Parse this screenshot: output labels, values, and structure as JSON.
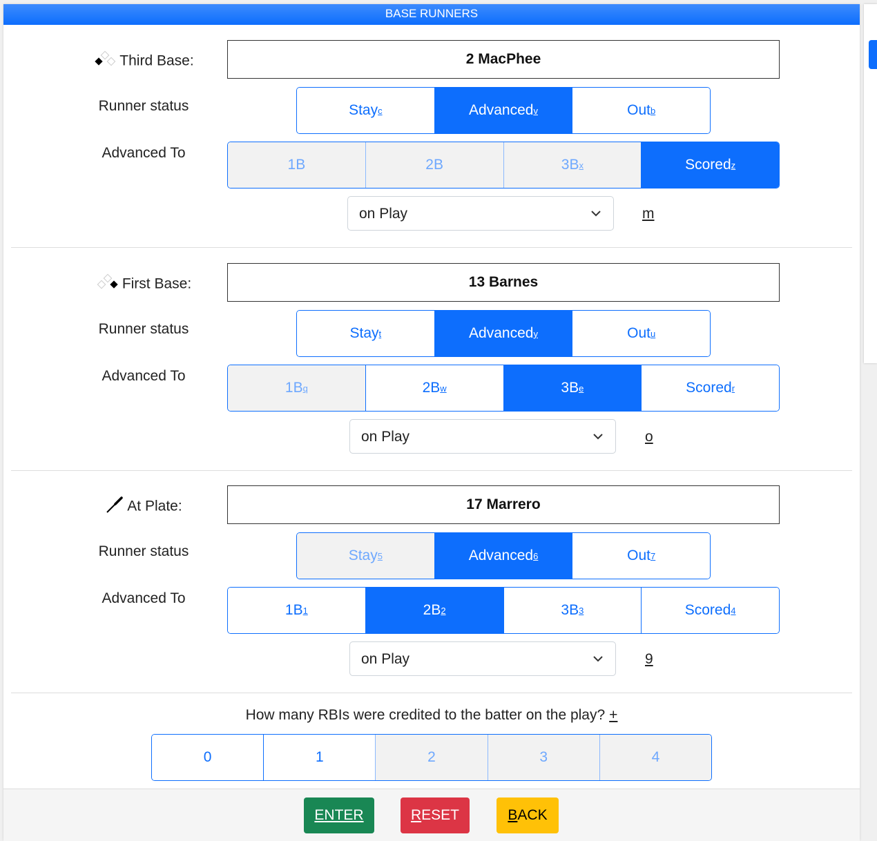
{
  "header": {
    "title": "BASE RUNNERS"
  },
  "runners": [
    {
      "label": "Third Base:",
      "icon": "third-base-diamond-icon",
      "name": "2 MacPhee",
      "status_label": "Runner status",
      "advanced_label": "Advanced To",
      "status": [
        {
          "text": "Stay",
          "key": "c",
          "state": "normal"
        },
        {
          "text": "Advanced",
          "key": "v",
          "state": "active"
        },
        {
          "text": "Out",
          "key": "b",
          "state": "normal"
        }
      ],
      "advanced": [
        {
          "text": "1B",
          "key": "",
          "state": "disabled"
        },
        {
          "text": "2B",
          "key": "",
          "state": "disabled"
        },
        {
          "text": "3B",
          "key": "x",
          "state": "disabled"
        },
        {
          "text": "Scored",
          "key": "z",
          "state": "active"
        }
      ],
      "select": "on Play",
      "hotkey": "m"
    },
    {
      "label": "First Base:",
      "icon": "first-base-diamond-icon",
      "name": "13 Barnes",
      "status_label": "Runner status",
      "advanced_label": "Advanced To",
      "status": [
        {
          "text": "Stay",
          "key": "t",
          "state": "normal"
        },
        {
          "text": "Advanced",
          "key": "y",
          "state": "active"
        },
        {
          "text": "Out",
          "key": "u",
          "state": "normal"
        }
      ],
      "advanced": [
        {
          "text": "1B",
          "key": "q",
          "state": "disabled"
        },
        {
          "text": "2B",
          "key": "w",
          "state": "normal"
        },
        {
          "text": "3B",
          "key": "e",
          "state": "active"
        },
        {
          "text": "Scored",
          "key": "r",
          "state": "normal"
        }
      ],
      "select": "on Play",
      "hotkey": "o"
    },
    {
      "label": "At Plate:",
      "icon": "bat-icon",
      "name": "17 Marrero",
      "status_label": "Runner status",
      "advanced_label": "Advanced To",
      "status": [
        {
          "text": "Stay",
          "key": "5",
          "state": "disabled"
        },
        {
          "text": "Advanced",
          "key": "6",
          "state": "active"
        },
        {
          "text": "Out",
          "key": "7",
          "state": "normal"
        }
      ],
      "advanced": [
        {
          "text": "1B",
          "key": "1",
          "state": "normal"
        },
        {
          "text": "2B",
          "key": "2",
          "state": "active"
        },
        {
          "text": "3B",
          "key": "3",
          "state": "normal"
        },
        {
          "text": "Scored",
          "key": "4",
          "state": "normal"
        }
      ],
      "select": "on Play",
      "hotkey": "9"
    }
  ],
  "rbi": {
    "question": "How many RBIs were credited to the batter on the play?",
    "hotkey": "+",
    "options": [
      {
        "text": "0",
        "state": "normal"
      },
      {
        "text": "1",
        "state": "normal"
      },
      {
        "text": "2",
        "state": "disabled"
      },
      {
        "text": "3",
        "state": "disabled"
      },
      {
        "text": "4",
        "state": "disabled"
      }
    ]
  },
  "footer": {
    "enter_key": "E",
    "enter_rest": "NTER",
    "reset_key": "R",
    "reset_rest": "ESET",
    "back_key": "B",
    "back_rest": "ACK"
  },
  "colors": {
    "primary": "#0d6efd",
    "enter": "#198754",
    "reset": "#dc3545",
    "back": "#ffc107"
  }
}
